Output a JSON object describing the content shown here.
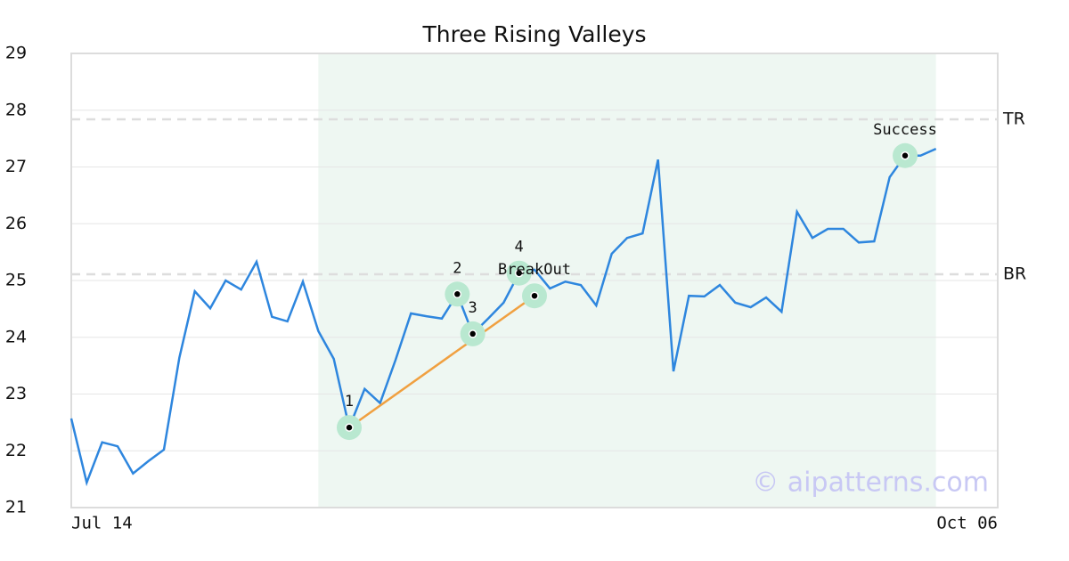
{
  "chart_data": {
    "type": "line",
    "title": "Three Rising Valleys",
    "x": [
      0,
      1,
      2,
      3,
      4,
      5,
      6,
      7,
      8,
      9,
      10,
      11,
      12,
      13,
      14,
      15,
      16,
      17,
      18,
      19,
      20,
      21,
      22,
      23,
      24,
      25,
      26,
      27,
      28,
      29,
      30,
      31,
      32,
      33,
      34,
      35,
      36,
      37,
      38,
      39,
      40,
      41,
      42,
      43,
      44,
      45,
      46,
      47,
      48,
      49,
      50,
      51,
      52,
      53,
      54,
      55,
      56
    ],
    "series": [
      {
        "color": "#2e86de",
        "values": [
          22.57,
          21.44,
          22.15,
          22.08,
          21.6,
          21.82,
          22.02,
          23.64,
          24.81,
          24.51,
          25.0,
          24.84,
          25.33,
          24.36,
          24.28,
          24.98,
          24.11,
          23.62,
          22.41,
          23.09,
          22.84,
          23.6,
          24.42,
          24.37,
          24.33,
          24.76,
          24.06,
          24.33,
          24.61,
          25.13,
          25.19,
          24.86,
          24.98,
          24.92,
          24.56,
          25.47,
          25.75,
          25.83,
          27.13,
          23.4,
          24.73,
          24.72,
          24.92,
          24.61,
          24.53,
          24.7,
          24.45,
          26.21,
          25.75,
          25.91,
          25.91,
          25.67,
          25.69,
          26.82,
          27.2,
          27.2,
          27.32
        ]
      }
    ],
    "xlim": [
      0,
      60
    ],
    "xticks": [
      {
        "value": 0,
        "label": "Jul 14"
      },
      {
        "value": 60,
        "label": "Oct 06"
      }
    ],
    "ylim": [
      21,
      29
    ],
    "yticks": [
      21,
      22,
      23,
      24,
      25,
      26,
      27,
      28,
      29
    ],
    "grid": true,
    "highlight": [
      16,
      56
    ],
    "highlight_color": "#eef7f2",
    "levels": [
      {
        "label": "TR",
        "value": 27.84
      },
      {
        "label": "BR",
        "value": 25.11
      }
    ],
    "trendline": {
      "color": "#f0a040",
      "x": [
        18,
        30
      ],
      "y": [
        22.41,
        24.73
      ]
    },
    "annotations": [
      {
        "label": "1",
        "x": 18,
        "y": 22.41
      },
      {
        "label": "2",
        "x": 25,
        "y": 24.76
      },
      {
        "label": "3",
        "x": 26,
        "y": 24.06
      },
      {
        "label": "4",
        "x": 29,
        "y": 25.13
      },
      {
        "label": "BreakOut",
        "x": 30,
        "y": 24.73
      },
      {
        "label": "Success",
        "x": 54,
        "y": 27.2
      }
    ],
    "watermark": "© aipatterns.com"
  }
}
